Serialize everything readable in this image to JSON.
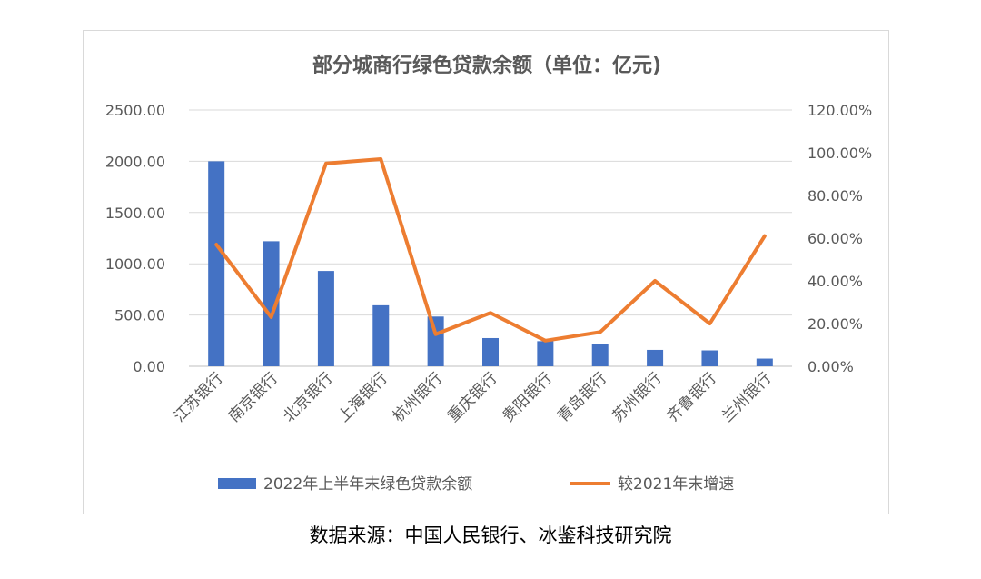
{
  "chart_data": {
    "type": "bar",
    "title": "部分城商行绿色贷款余额（单位：亿元)",
    "categories": [
      "江苏银行",
      "南京银行",
      "北京银行",
      "上海银行",
      "杭州银行",
      "重庆银行",
      "贵阳银行",
      "青岛银行",
      "苏州银行",
      "齐鲁银行",
      "兰州银行"
    ],
    "series": [
      {
        "name": "2022年上半年末绿色贷款余额",
        "type": "bar",
        "axis": "left",
        "color": "#4472c4",
        "values": [
          2000,
          1220,
          930,
          595,
          485,
          275,
          245,
          220,
          160,
          155,
          75
        ]
      },
      {
        "name": "较2021年末增速",
        "type": "line",
        "axis": "right",
        "color": "#ed7d31",
        "values": [
          57,
          23,
          95,
          97,
          15,
          25,
          12,
          16,
          40,
          20,
          61
        ]
      }
    ],
    "y_left": {
      "min": 0,
      "max": 2500,
      "ticks": [
        "0.00",
        "500.00",
        "1000.00",
        "1500.00",
        "2000.00",
        "2500.00"
      ]
    },
    "y_right": {
      "min": 0,
      "max": 120,
      "ticks": [
        "0.00%",
        "20.00%",
        "40.00%",
        "60.00%",
        "80.00%",
        "100.00%",
        "120.00%"
      ]
    },
    "grid": true,
    "legend_position": "bottom"
  },
  "source_text": "数据来源：中国人民银行、冰鉴科技研究院"
}
